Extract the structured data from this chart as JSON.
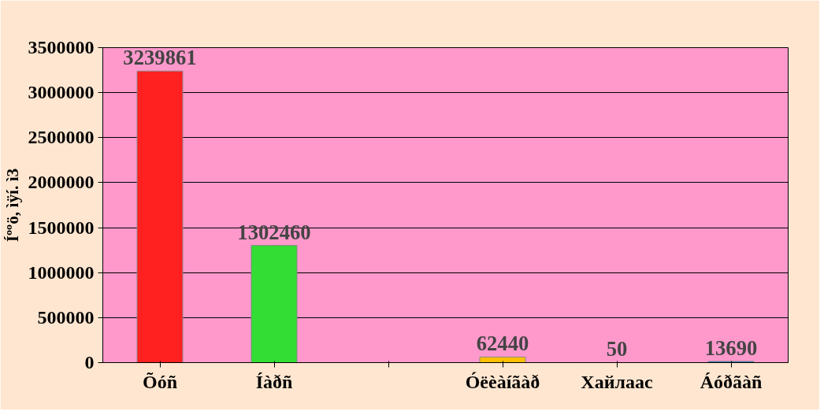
{
  "chart_data": {
    "type": "bar",
    "ylabel": "Íººö, ìÿí. ì3",
    "categories": [
      "Õóñ",
      "Íàðñ",
      null,
      "Óëèàíãàð",
      "Хайлаас",
      "Áóðãàñ"
    ],
    "values": [
      3239861,
      1302460,
      null,
      62440,
      50,
      13690
    ],
    "colors": [
      "#ff2020",
      "#33dd33",
      "#cccccc",
      "#ffc000",
      "#800060",
      "#0080c0"
    ],
    "ylim": [
      0,
      3500000
    ],
    "yticks": [
      0,
      500000,
      1000000,
      1500000,
      2000000,
      2500000,
      3000000,
      3500000
    ],
    "grid": "y",
    "data_labels": true
  }
}
